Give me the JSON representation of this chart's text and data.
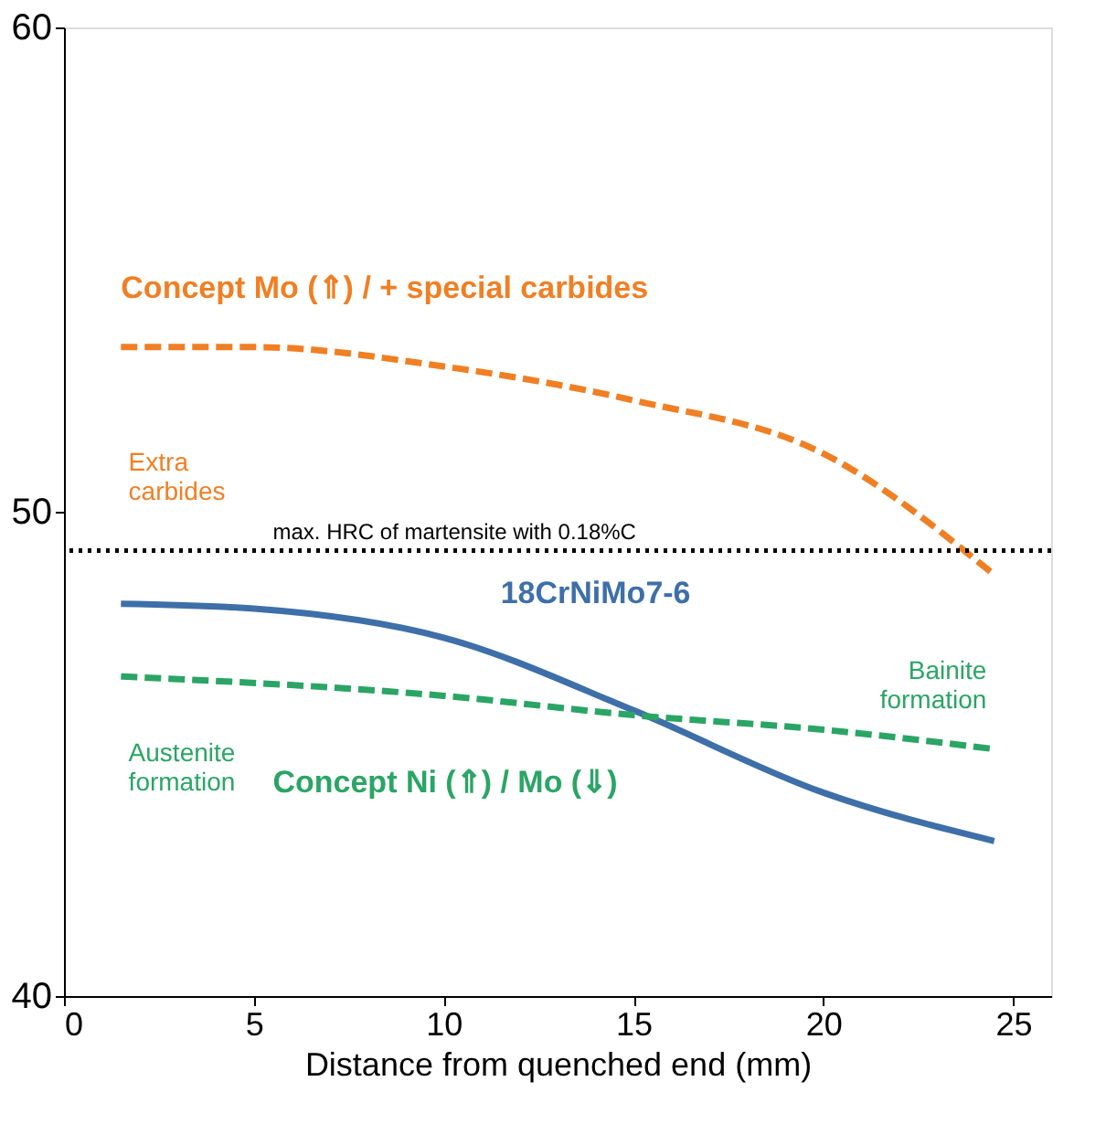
{
  "chart_data": {
    "type": "line",
    "xlabel": "Distance from quenched end (mm)",
    "xlim": [
      0,
      26
    ],
    "xticks": [
      0,
      5,
      10,
      15,
      20,
      25
    ],
    "ylim": [
      40,
      60
    ],
    "yticks": [
      40,
      50,
      60
    ],
    "grid": false,
    "series": [
      {
        "name": "Concept Mo (⇑) / + special carbides",
        "color": "#f07f24",
        "line_style": "dashed",
        "x": [
          1.5,
          5,
          10,
          15,
          20,
          24.5
        ],
        "values": [
          53.4,
          53.4,
          53.0,
          52.3,
          51.2,
          48.7
        ]
      },
      {
        "name": "18CrNiMo7-6",
        "color": "#3e6fa8",
        "line_style": "solid",
        "x": [
          1.5,
          5,
          10,
          15,
          20,
          24.5
        ],
        "values": [
          48.1,
          48.0,
          47.4,
          45.9,
          44.2,
          43.2
        ]
      },
      {
        "name": "Concept Ni (⇑) / Mo (⇓)",
        "color": "#2aa565",
        "line_style": "dashed",
        "x": [
          1.5,
          10,
          15,
          20,
          24.5
        ],
        "values": [
          46.6,
          46.2,
          45.8,
          45.5,
          45.1
        ]
      }
    ],
    "ref_lines": [
      {
        "axis": "y",
        "value": 49.2,
        "label": "max. HRC of martensite with 0.18%C",
        "color": "#000000",
        "line_style": "dotted"
      }
    ],
    "annotations": [
      "Extra carbides",
      "Austenite formation",
      "Bainite formation"
    ]
  }
}
